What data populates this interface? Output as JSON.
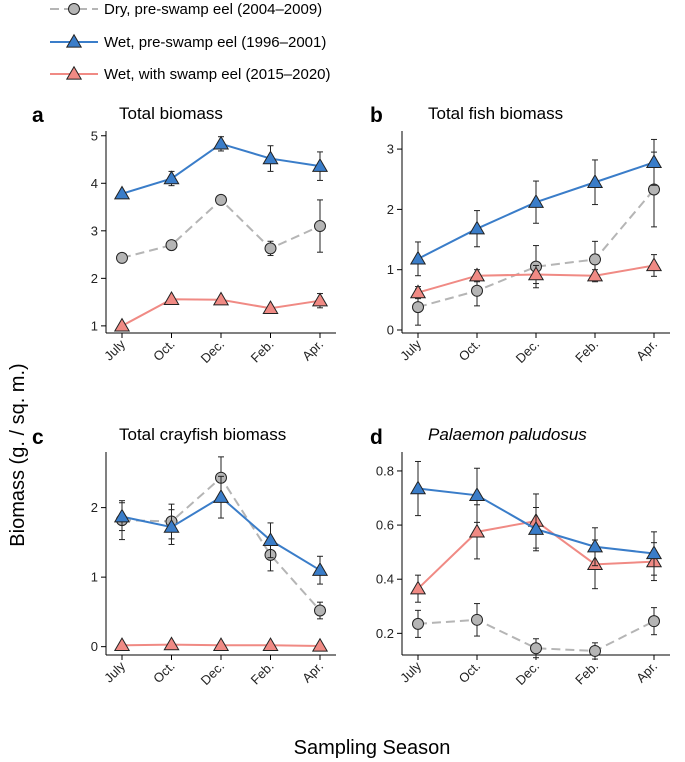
{
  "legend": [
    {
      "label": "Dry, pre-swamp eel (2004–2009)",
      "marker": "circle",
      "fill": "#b5b5b5",
      "line": "#b5b5b5",
      "dashed": true
    },
    {
      "label": "Wet, pre-swamp eel (1996–2001)",
      "marker": "triangle",
      "fill": "#3a7dc9",
      "line": "#3a7dc9",
      "dashed": false
    },
    {
      "label": "Wet, with swamp eel (2015–2020)",
      "marker": "triangle",
      "fill": "#f08a84",
      "line": "#f08a84",
      "dashed": false
    }
  ],
  "ylabel": "Biomass (g. / sq. m.)",
  "xlabel": "Sampling Season",
  "chart_data": [
    {
      "type": "line",
      "letter": "a",
      "title": "Total biomass",
      "italic": false,
      "categories": [
        "July",
        "Oct.",
        "Dec.",
        "Feb.",
        "Apr."
      ],
      "ylim": [
        0.85,
        5.1
      ],
      "yticks": [
        1,
        2,
        3,
        4,
        5
      ],
      "series": [
        {
          "name": "Dry, pre-swamp eel (2004–2009)",
          "values": [
            2.43,
            2.7,
            3.65,
            2.63,
            3.1
          ],
          "errors": [
            0,
            0.05,
            0.05,
            0.15,
            0.55
          ]
        },
        {
          "name": "Wet, pre-swamp eel (1996–2001)",
          "values": [
            3.78,
            4.1,
            4.83,
            4.52,
            4.36
          ],
          "errors": [
            0.05,
            0.15,
            0.15,
            0.27,
            0.3
          ]
        },
        {
          "name": "Wet, with swamp eel (2015–2020)",
          "values": [
            1.0,
            1.56,
            1.55,
            1.37,
            1.53
          ],
          "errors": [
            0,
            0.04,
            0.04,
            0.05,
            0.15
          ]
        }
      ]
    },
    {
      "type": "line",
      "letter": "b",
      "title": "Total fish biomass",
      "italic": false,
      "categories": [
        "July",
        "Oct.",
        "Dec.",
        "Feb.",
        "Apr."
      ],
      "ylim": [
        -0.05,
        3.3
      ],
      "yticks": [
        0,
        1,
        2,
        3
      ],
      "series": [
        {
          "name": "Dry, pre-swamp eel (2004–2009)",
          "values": [
            0.38,
            0.65,
            1.05,
            1.17,
            2.33
          ],
          "errors": [
            0.3,
            0.25,
            0.35,
            0.3,
            0.62
          ]
        },
        {
          "name": "Wet, pre-swamp eel (1996–2001)",
          "values": [
            1.18,
            1.68,
            2.12,
            2.45,
            2.78
          ],
          "errors": [
            0.28,
            0.3,
            0.35,
            0.37,
            0.38
          ]
        },
        {
          "name": "Wet, with swamp eel (2015–2020)",
          "values": [
            0.62,
            0.9,
            0.92,
            0.9,
            1.07
          ],
          "errors": [
            0.1,
            0.1,
            0.15,
            0.1,
            0.18
          ]
        }
      ]
    },
    {
      "type": "line",
      "letter": "c",
      "title": "Total crayfish biomass",
      "italic": false,
      "categories": [
        "July",
        "Oct.",
        "Dec.",
        "Feb.",
        "Apr."
      ],
      "ylim": [
        -0.12,
        2.8
      ],
      "yticks": [
        0,
        1,
        2
      ],
      "series": [
        {
          "name": "Dry, pre-swamp eel (2004–2009)",
          "values": [
            1.82,
            1.8,
            2.43,
            1.32,
            0.52
          ],
          "errors": [
            0.28,
            0.25,
            0.3,
            0.23,
            0.12
          ]
        },
        {
          "name": "Wet, pre-swamp eel (1996–2001)",
          "values": [
            1.87,
            1.72,
            2.15,
            1.53,
            1.1
          ],
          "errors": [
            0.2,
            0.25,
            0.3,
            0.25,
            0.2
          ]
        },
        {
          "name": "Wet, with swamp eel (2015–2020)",
          "values": [
            0.02,
            0.03,
            0.02,
            0.02,
            0.01
          ],
          "errors": [
            0,
            0,
            0,
            0,
            0
          ]
        }
      ]
    },
    {
      "type": "line",
      "letter": "d",
      "title": "Palaemon paludosus",
      "italic": true,
      "categories": [
        "July",
        "Oct.",
        "Dec.",
        "Feb.",
        "Apr."
      ],
      "ylim": [
        0.12,
        0.87
      ],
      "yticks": [
        0.2,
        0.4,
        0.6,
        0.8
      ],
      "series": [
        {
          "name": "Dry, pre-swamp eel (2004–2009)",
          "values": [
            0.235,
            0.25,
            0.145,
            0.135,
            0.245
          ],
          "errors": [
            0.05,
            0.06,
            0.035,
            0.03,
            0.05
          ]
        },
        {
          "name": "Wet, pre-swamp eel (1996–2001)",
          "values": [
            0.735,
            0.71,
            0.585,
            0.52,
            0.495
          ],
          "errors": [
            0.1,
            0.1,
            0.08,
            0.07,
            0.08
          ]
        },
        {
          "name": "Wet, with swamp eel (2015–2020)",
          "values": [
            0.365,
            0.575,
            0.615,
            0.455,
            0.465
          ],
          "errors": [
            0.05,
            0.1,
            0.1,
            0.09,
            0.07
          ]
        }
      ]
    }
  ]
}
